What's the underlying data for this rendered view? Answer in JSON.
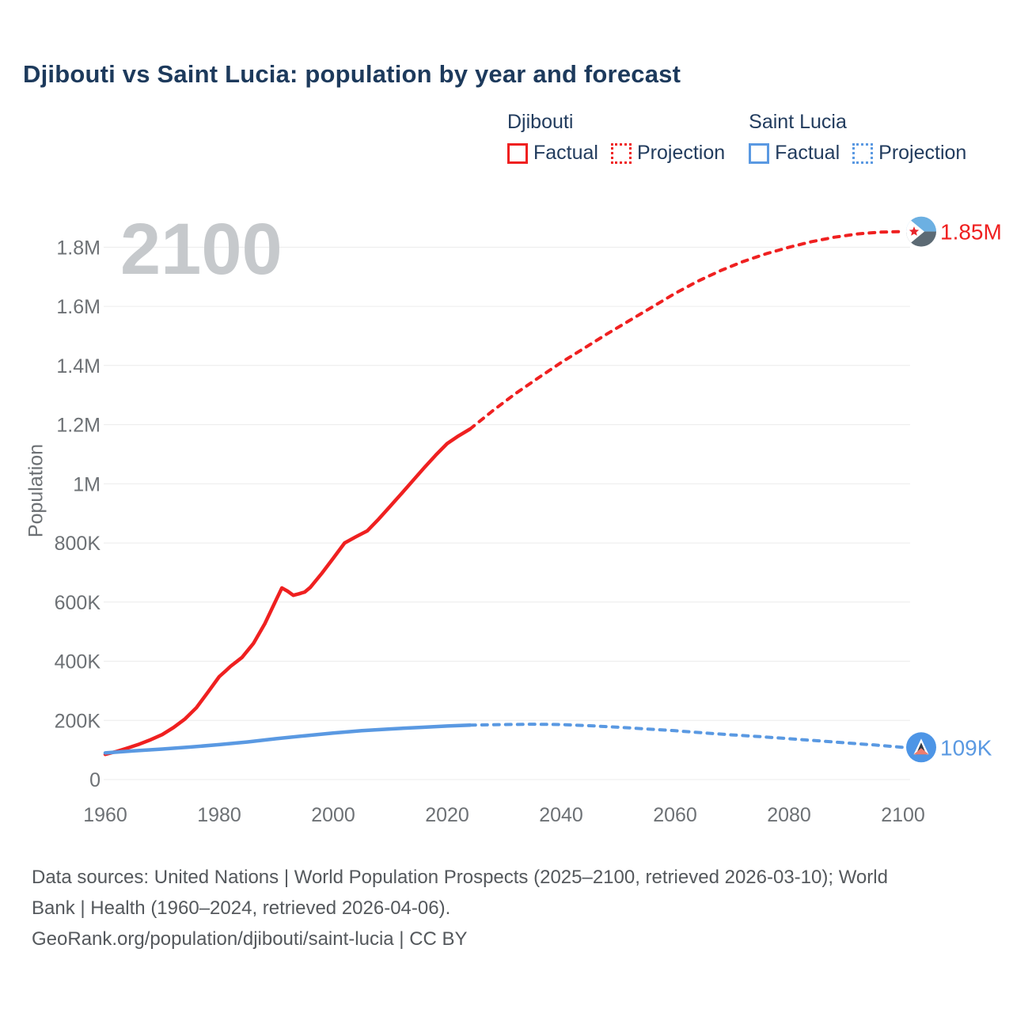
{
  "title": "Djibouti vs Saint Lucia: population by year and forecast",
  "watermark": "2100",
  "ylabel": "Population",
  "legend": {
    "groups": [
      {
        "name": "Djibouti",
        "factual": "Factual",
        "projection": "Projection",
        "color": "#ef2020"
      },
      {
        "name": "Saint Lucia",
        "factual": "Factual",
        "projection": "Projection",
        "color": "#5a99e2"
      }
    ]
  },
  "footer": {
    "line1": "Data sources: United Nations | World Population Prospects (2025–2100, retrieved 2026-03-10); World",
    "line2": "Bank | Health (1960–2024, retrieved 2026-04-06).",
    "line3": "GeoRank.org/population/djibouti/saint-lucia | CC BY"
  },
  "colors": {
    "djibouti_red": "#ef2020",
    "saint_lucia_blue": "#5a99e2",
    "title_navy": "#1d3a5c",
    "axis_gray": "#6d7175",
    "watermark_gray": "#c6c9cc",
    "footer_gray": "#54585c",
    "gridline": "#ececec"
  },
  "chart_data": {
    "type": "line",
    "title": "Djibouti vs Saint Lucia: population by year and forecast",
    "xlabel": "",
    "ylabel": "Population",
    "unit": "persons",
    "grid": "horizontal",
    "legend_position": "top-right",
    "xlim": [
      1960,
      2100
    ],
    "ylim": [
      0,
      1900000
    ],
    "x_ticks": [
      1960,
      1980,
      2000,
      2020,
      2040,
      2060,
      2080,
      2100
    ],
    "y_ticks": [
      {
        "value": 0,
        "label": "0"
      },
      {
        "value": 200000,
        "label": "200K"
      },
      {
        "value": 400000,
        "label": "400K"
      },
      {
        "value": 600000,
        "label": "600K"
      },
      {
        "value": 800000,
        "label": "800K"
      },
      {
        "value": 1000000,
        "label": "1M"
      },
      {
        "value": 1200000,
        "label": "1.2M"
      },
      {
        "value": 1400000,
        "label": "1.4M"
      },
      {
        "value": 1600000,
        "label": "1.6M"
      },
      {
        "value": 1800000,
        "label": "1.8M"
      }
    ],
    "series": [
      {
        "id": "djibouti-factual",
        "name": "Djibouti Factual",
        "style": "solid",
        "color": "#ef2020",
        "points": [
          [
            1960,
            85000
          ],
          [
            1962,
            95000
          ],
          [
            1964,
            107000
          ],
          [
            1966,
            120000
          ],
          [
            1968,
            135000
          ],
          [
            1970,
            152000
          ],
          [
            1972,
            176000
          ],
          [
            1974,
            205000
          ],
          [
            1976,
            243000
          ],
          [
            1978,
            295000
          ],
          [
            1980,
            348000
          ],
          [
            1981,
            365000
          ],
          [
            1982,
            383000
          ],
          [
            1983,
            398000
          ],
          [
            1984,
            413000
          ],
          [
            1986,
            460000
          ],
          [
            1988,
            527000
          ],
          [
            1990,
            608000
          ],
          [
            1991,
            648000
          ],
          [
            1992,
            637000
          ],
          [
            1993,
            623000
          ],
          [
            1994,
            628000
          ],
          [
            1995,
            634000
          ],
          [
            1996,
            650000
          ],
          [
            1998,
            697000
          ],
          [
            2000,
            748000
          ],
          [
            2002,
            800000
          ],
          [
            2004,
            821000
          ],
          [
            2006,
            841000
          ],
          [
            2008,
            881000
          ],
          [
            2010,
            924000
          ],
          [
            2012,
            967000
          ],
          [
            2014,
            1011000
          ],
          [
            2016,
            1055000
          ],
          [
            2018,
            1097000
          ],
          [
            2020,
            1136000
          ],
          [
            2022,
            1162000
          ],
          [
            2024,
            1185000
          ]
        ]
      },
      {
        "id": "djibouti-projection",
        "name": "Djibouti Projection",
        "style": "dotted",
        "color": "#ef2020",
        "end_label": "1.85M",
        "end_marker": "flag-djibouti-icon",
        "points": [
          [
            2024,
            1185000
          ],
          [
            2028,
            1247000
          ],
          [
            2032,
            1305000
          ],
          [
            2036,
            1358000
          ],
          [
            2040,
            1410000
          ],
          [
            2044,
            1458000
          ],
          [
            2048,
            1506000
          ],
          [
            2052,
            1552000
          ],
          [
            2056,
            1598000
          ],
          [
            2060,
            1644000
          ],
          [
            2064,
            1685000
          ],
          [
            2068,
            1721000
          ],
          [
            2072,
            1752000
          ],
          [
            2076,
            1778000
          ],
          [
            2080,
            1800000
          ],
          [
            2084,
            1819000
          ],
          [
            2088,
            1834000
          ],
          [
            2092,
            1845000
          ],
          [
            2096,
            1851000
          ],
          [
            2100,
            1853000
          ]
        ]
      },
      {
        "id": "saint-lucia-factual",
        "name": "Saint Lucia Factual",
        "style": "solid",
        "color": "#5a99e2",
        "points": [
          [
            1960,
            90000
          ],
          [
            1965,
            97000
          ],
          [
            1970,
            103000
          ],
          [
            1975,
            110000
          ],
          [
            1980,
            118000
          ],
          [
            1985,
            127000
          ],
          [
            1990,
            138000
          ],
          [
            1995,
            148000
          ],
          [
            2000,
            157000
          ],
          [
            2005,
            165000
          ],
          [
            2010,
            171000
          ],
          [
            2015,
            176000
          ],
          [
            2020,
            181000
          ],
          [
            2024,
            184000
          ]
        ]
      },
      {
        "id": "saint-lucia-projection",
        "name": "Saint Lucia Projection",
        "style": "dotted",
        "color": "#5a99e2",
        "end_label": "109K",
        "end_marker": "flag-saint-lucia-icon",
        "points": [
          [
            2024,
            184000
          ],
          [
            2030,
            186000
          ],
          [
            2035,
            187000
          ],
          [
            2040,
            186000
          ],
          [
            2045,
            182000
          ],
          [
            2050,
            177000
          ],
          [
            2055,
            171000
          ],
          [
            2060,
            165000
          ],
          [
            2065,
            158000
          ],
          [
            2070,
            151000
          ],
          [
            2075,
            145000
          ],
          [
            2080,
            138000
          ],
          [
            2085,
            131000
          ],
          [
            2090,
            124000
          ],
          [
            2095,
            117000
          ],
          [
            2100,
            109000
          ]
        ]
      }
    ]
  }
}
